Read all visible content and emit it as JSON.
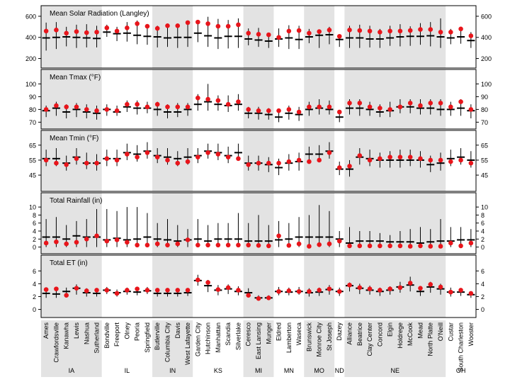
{
  "chart_data": {
    "type": "scatter",
    "stations": [
      "Ames",
      "Crawfordsville",
      "Kanawha",
      "Lewis",
      "Nashua",
      "Sutherland",
      "Bondville",
      "Freeport",
      "Olney",
      "Peoria",
      "Springfield",
      "Butlerville",
      "Columbia City",
      "Davis",
      "West Lafayette",
      "Garden City",
      "Hutchinson",
      "Manhattan",
      "Scandia",
      "Silverlake",
      "Ceresco",
      "East Lansing",
      "Munger",
      "Eldred",
      "Lamberton",
      "Waseca",
      "Brunswick",
      "Monroe City",
      "St Joseph",
      "Dazey",
      "Alliance",
      "Beatrice",
      "Clay Center",
      "Concord",
      "Elgin",
      "Holdrege",
      "McCook",
      "Mead",
      "North Platte",
      "O'Neill",
      "Custar",
      "South Charleston",
      "Wooster"
    ],
    "states": [
      {
        "label": "IA",
        "start": 0,
        "end": 5,
        "shaded": true
      },
      {
        "label": "IL",
        "start": 6,
        "end": 10,
        "shaded": false
      },
      {
        "label": "IN",
        "start": 11,
        "end": 14,
        "shaded": true
      },
      {
        "label": "KS",
        "start": 15,
        "end": 19,
        "shaded": false
      },
      {
        "label": "MI",
        "start": 20,
        "end": 22,
        "shaded": true
      },
      {
        "label": "MN",
        "start": 23,
        "end": 25,
        "shaded": false
      },
      {
        "label": "MO",
        "start": 26,
        "end": 28,
        "shaded": true
      },
      {
        "label": "ND",
        "start": 29,
        "end": 29,
        "shaded": false
      },
      {
        "label": "NE",
        "start": 30,
        "end": 39,
        "shaded": true
      },
      {
        "label": "OH",
        "start": 40,
        "end": 42,
        "shaded": false
      }
    ],
    "panels": [
      {
        "title": "Mean Solar Radiation (Langley)",
        "ylim": [
          150,
          660
        ],
        "ticks": [
          200,
          400,
          600
        ],
        "points": [
          460,
          470,
          440,
          455,
          445,
          450,
          490,
          460,
          490,
          530,
          505,
          485,
          510,
          510,
          540,
          545,
          530,
          505,
          505,
          520,
          440,
          430,
          425,
          400,
          460,
          465,
          440,
          455,
          470,
          410,
          470,
          465,
          460,
          450,
          460,
          460,
          465,
          475,
          475,
          450,
          450,
          480,
          415
        ],
        "median": [
          395,
          400,
          405,
          400,
          395,
          390,
          450,
          435,
          440,
          420,
          410,
          405,
          395,
          400,
          400,
          440,
          415,
          395,
          410,
          410,
          385,
          375,
          365,
          385,
          395,
          380,
          405,
          420,
          425,
          380,
          395,
          395,
          385,
          385,
          395,
          405,
          410,
          410,
          415,
          405,
          395,
          405,
          370
        ],
        "low": [
          275,
          290,
          315,
          300,
          305,
          305,
          405,
          365,
          360,
          335,
          330,
          305,
          310,
          300,
          310,
          355,
          310,
          290,
          295,
          300,
          325,
          310,
          300,
          310,
          290,
          290,
          345,
          300,
          335,
          310,
          300,
          300,
          305,
          300,
          320,
          315,
          320,
          330,
          315,
          300,
          335,
          340,
          300
        ],
        "high": [
          540,
          545,
          500,
          520,
          525,
          510,
          520,
          500,
          545,
          560,
          520,
          510,
          530,
          520,
          550,
          560,
          595,
          575,
          565,
          580,
          485,
          490,
          445,
          485,
          515,
          510,
          480,
          460,
          500,
          430,
          510,
          520,
          510,
          480,
          510,
          525,
          505,
          535,
          545,
          580,
          480,
          485,
          450
        ]
      },
      {
        "title": "Mean Tmax (°F)",
        "ylim": [
          68,
          108
        ],
        "ticks": [
          70,
          80,
          90,
          100
        ],
        "points": [
          80,
          83,
          82,
          82,
          80,
          79,
          80,
          79,
          84,
          84,
          82,
          84,
          82,
          82,
          82,
          89,
          88,
          87,
          84,
          86,
          80,
          79,
          79,
          79,
          80,
          78,
          82,
          82,
          82,
          78,
          85,
          85,
          82,
          81,
          80,
          82,
          85,
          83,
          85,
          85,
          82,
          86,
          80
        ],
        "median": [
          79,
          81,
          78,
          80,
          78,
          77,
          80,
          78,
          82,
          81,
          81,
          80,
          78,
          78,
          80,
          84,
          86,
          84,
          83,
          84,
          77,
          77,
          76,
          74,
          77,
          76,
          80,
          81,
          80,
          74,
          81,
          81,
          80,
          78,
          79,
          82,
          82,
          81,
          81,
          80,
          80,
          81,
          79
        ],
        "low": [
          74,
          75,
          73,
          74,
          73,
          72,
          75,
          75,
          78,
          76,
          77,
          75,
          73,
          74,
          75,
          79,
          79,
          79,
          78,
          79,
          73,
          72,
          72,
          70,
          72,
          71,
          75,
          76,
          76,
          70,
          76,
          75,
          75,
          74,
          74,
          77,
          77,
          76,
          76,
          75,
          75,
          75,
          73
        ],
        "high": [
          83,
          86,
          84,
          85,
          84,
          83,
          84,
          83,
          87,
          87,
          86,
          86,
          84,
          85,
          85,
          92,
          100,
          91,
          91,
          92,
          82,
          82,
          81,
          80,
          83,
          82,
          86,
          88,
          87,
          79,
          88,
          88,
          86,
          84,
          86,
          88,
          88,
          88,
          88,
          88,
          86,
          88,
          84
        ]
      },
      {
        "title": "Mean Tmin (°F)",
        "ylim": [
          37,
          72
        ],
        "ticks": [
          45,
          55,
          65
        ],
        "points": [
          55,
          53,
          52,
          56,
          53,
          53,
          56,
          55,
          59,
          57,
          60,
          57,
          55,
          53,
          54,
          57,
          60,
          59,
          57,
          56,
          52,
          53,
          53,
          53,
          54,
          55,
          54,
          55,
          60,
          50,
          51,
          58,
          55,
          56,
          57,
          57,
          57,
          56,
          55,
          55,
          54,
          55,
          53
        ],
        "median": [
          56,
          56,
          53,
          57,
          53,
          53,
          56,
          56,
          60,
          59,
          61,
          58,
          57,
          56,
          57,
          58,
          61,
          60,
          58,
          60,
          53,
          53,
          52,
          50,
          53,
          54,
          59,
          59,
          61,
          49,
          49,
          57,
          56,
          55,
          55,
          55,
          55,
          55,
          52,
          53,
          56,
          57,
          55
        ],
        "low": [
          51,
          51,
          48,
          52,
          49,
          48,
          51,
          51,
          55,
          54,
          56,
          53,
          52,
          51,
          52,
          53,
          56,
          55,
          53,
          55,
          48,
          48,
          47,
          45,
          48,
          48,
          55,
          55,
          56,
          45,
          44,
          52,
          51,
          50,
          50,
          50,
          51,
          50,
          47,
          48,
          51,
          52,
          50
        ],
        "high": [
          62,
          63,
          58,
          63,
          60,
          59,
          62,
          62,
          66,
          65,
          67,
          63,
          63,
          61,
          63,
          63,
          66,
          66,
          64,
          66,
          58,
          58,
          57,
          56,
          59,
          60,
          64,
          65,
          67,
          54,
          55,
          63,
          62,
          60,
          61,
          62,
          62,
          61,
          58,
          60,
          62,
          63,
          61
        ]
      },
      {
        "title": "Total Rainfall (in)",
        "ylim": [
          -0.6,
          12.5
        ],
        "ticks": [
          0,
          2,
          4,
          6,
          8,
          10
        ],
        "points": [
          1.0,
          1.3,
          0.8,
          1.2,
          2.0,
          2.8,
          1.5,
          1.8,
          1.2,
          0.5,
          0.5,
          0.8,
          0.5,
          0.8,
          1.8,
          0.5,
          0.5,
          0.5,
          0.5,
          0.5,
          0.5,
          0.4,
          0.3,
          2.8,
          0.4,
          0.8,
          0.2,
          0.6,
          0.8,
          1.5,
          0.3,
          0.3,
          0.3,
          0.3,
          0.3,
          0.3,
          0.2,
          0.3,
          0.2,
          0.2,
          1.0,
          0.3,
          1.0
        ],
        "median": [
          2.5,
          2.5,
          2.0,
          2.8,
          2.5,
          2.5,
          1.8,
          2.2,
          1.8,
          2.0,
          2.5,
          2.0,
          1.8,
          1.5,
          1.8,
          2.0,
          1.5,
          2.0,
          2.0,
          2.0,
          1.5,
          1.5,
          1.5,
          1.8,
          2.0,
          2.5,
          2.5,
          2.5,
          2.5,
          2.0,
          1.0,
          1.5,
          1.5,
          1.5,
          1.3,
          1.3,
          1.3,
          1.0,
          1.3,
          1.5,
          1.5,
          1.8,
          1.8
        ],
        "low": [
          0,
          0,
          0,
          0,
          0,
          0,
          0,
          0,
          0,
          0,
          0,
          0,
          0,
          0,
          0,
          0,
          0,
          0,
          0,
          0,
          0,
          0,
          0,
          0,
          0,
          0,
          0,
          0,
          0,
          0,
          0,
          0,
          0,
          0,
          0,
          0,
          0,
          0,
          0,
          0,
          0,
          0,
          0
        ],
        "high": [
          7.0,
          7.5,
          5.5,
          6.5,
          7.0,
          9.5,
          9.5,
          9.0,
          10.0,
          10.0,
          8.5,
          6.0,
          7.0,
          5.5,
          4.5,
          7.0,
          5.5,
          6.0,
          6.0,
          8.5,
          6.0,
          8.0,
          5.5,
          6.5,
          6.0,
          7.5,
          8.0,
          10.5,
          9.0,
          4.0,
          5.0,
          4.0,
          4.0,
          3.5,
          3.0,
          4.0,
          4.5,
          5.0,
          4.5,
          7.0,
          5.0,
          5.0,
          4.5
        ]
      },
      {
        "title": "Total ET (in)",
        "ylim": [
          -0.6,
          7.8
        ],
        "ticks": [
          0,
          2,
          4,
          6
        ],
        "points": [
          3.1,
          3.2,
          2.2,
          3.3,
          2.9,
          3.0,
          3.0,
          2.5,
          3.0,
          3.2,
          3.0,
          3.0,
          3.0,
          3.0,
          3.0,
          4.6,
          4.2,
          3.1,
          3.4,
          3.0,
          2.2,
          1.7,
          1.8,
          2.8,
          2.9,
          2.8,
          2.8,
          3.0,
          3.2,
          2.8,
          3.8,
          3.4,
          3.2,
          3.0,
          3.2,
          3.4,
          4.1,
          3.3,
          3.9,
          3.5,
          2.7,
          3.0,
          2.5
        ],
        "median": [
          2.5,
          2.4,
          2.8,
          3.3,
          2.6,
          2.5,
          3.0,
          2.6,
          2.8,
          2.7,
          2.9,
          2.5,
          2.5,
          2.5,
          2.6,
          4.5,
          3.7,
          3.0,
          3.2,
          2.8,
          2.6,
          1.8,
          1.8,
          2.8,
          2.7,
          2.8,
          2.6,
          2.7,
          3.1,
          2.8,
          3.7,
          3.3,
          3.0,
          2.8,
          3.0,
          3.5,
          3.8,
          2.8,
          3.5,
          3.2,
          2.7,
          2.7,
          2.3
        ],
        "low": [
          1.8,
          1.8,
          2.0,
          2.3,
          2.0,
          2.0,
          2.4,
          2.0,
          2.3,
          2.2,
          2.4,
          2.0,
          2.0,
          2.0,
          2.1,
          3.7,
          2.7,
          2.2,
          2.4,
          2.2,
          2.0,
          1.5,
          1.5,
          2.2,
          2.2,
          2.3,
          2.0,
          2.1,
          2.3,
          2.1,
          2.8,
          2.4,
          2.3,
          2.1,
          2.3,
          2.6,
          2.8,
          2.1,
          2.6,
          2.3,
          2.0,
          2.1,
          1.8
        ],
        "high": [
          3.2,
          3.3,
          3.4,
          3.9,
          3.3,
          3.2,
          3.5,
          3.1,
          3.4,
          3.4,
          3.5,
          3.2,
          3.1,
          3.2,
          3.3,
          5.4,
          4.6,
          3.8,
          3.9,
          3.6,
          3.3,
          2.2,
          2.2,
          3.5,
          3.4,
          3.5,
          3.3,
          3.4,
          3.8,
          3.4,
          4.2,
          4.0,
          3.7,
          3.4,
          3.6,
          4.3,
          5.1,
          3.5,
          4.3,
          4.0,
          3.4,
          3.3,
          2.8
        ]
      }
    ]
  }
}
